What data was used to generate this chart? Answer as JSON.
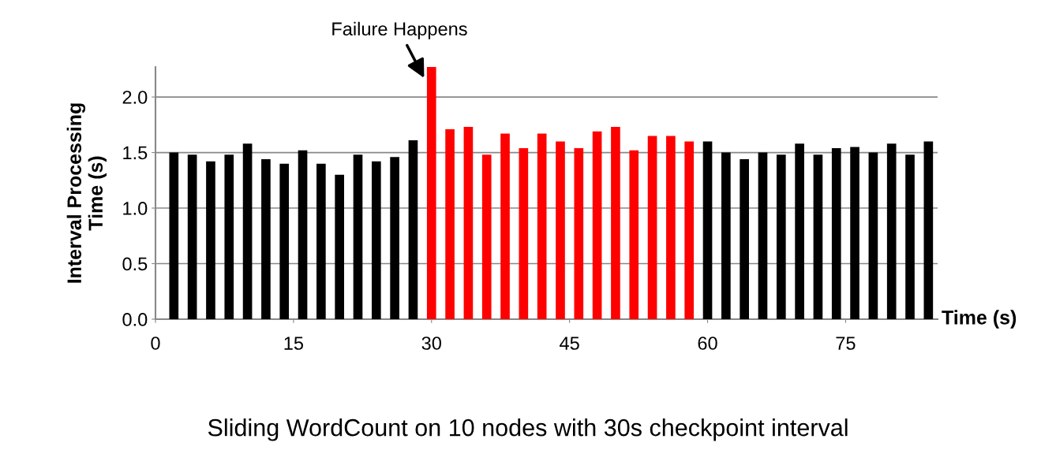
{
  "chart_data": {
    "type": "bar",
    "title": "Sliding WordCount on 10 nodes with 30s checkpoint interval",
    "xlabel": "Time (s)",
    "ylabel": "Interval Processing\nTime (s)",
    "series": [
      {
        "color": "#000000",
        "x": [
          2,
          4,
          6,
          8,
          10,
          12,
          14,
          16,
          18,
          20,
          22,
          24,
          26,
          28
        ],
        "values": [
          1.5,
          1.48,
          1.42,
          1.48,
          1.58,
          1.44,
          1.4,
          1.52,
          1.4,
          1.3,
          1.48,
          1.42,
          1.46,
          1.61
        ]
      },
      {
        "color": "#ff0000",
        "x": [
          30,
          32,
          34,
          36,
          38,
          40,
          42,
          44,
          46,
          48,
          50,
          52,
          54,
          56,
          58
        ],
        "values": [
          2.27,
          1.71,
          1.73,
          1.48,
          1.67,
          1.54,
          1.67,
          1.6,
          1.54,
          1.69,
          1.73,
          1.52,
          1.65,
          1.65,
          1.6
        ]
      },
      {
        "color": "#000000",
        "x": [
          60,
          62,
          64,
          66,
          68,
          70,
          72,
          74,
          76,
          78,
          80,
          82,
          84
        ],
        "values": [
          1.6,
          1.5,
          1.44,
          1.5,
          1.48,
          1.58,
          1.48,
          1.54,
          1.55,
          1.5,
          1.58,
          1.48,
          1.6
        ]
      }
    ],
    "xlim": [
      0,
      85
    ],
    "xticks": [
      0,
      15,
      30,
      45,
      60,
      75
    ],
    "ylim": [
      0,
      2.27
    ],
    "yticks": [
      {
        "value": 0,
        "label": "0.0"
      },
      {
        "value": 0.5,
        "label": "0.5"
      },
      {
        "value": 1,
        "label": "1.0"
      },
      {
        "value": 1.5,
        "label": "1.5"
      },
      {
        "value": 2,
        "label": "2.0"
      }
    ],
    "grid": "y",
    "legend": false,
    "annotations": [
      {
        "text": "Failure Happens",
        "x": 30,
        "y": 2.27
      }
    ]
  }
}
